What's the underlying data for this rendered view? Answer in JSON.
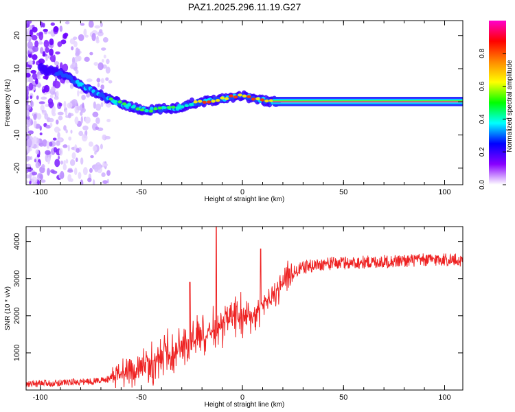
{
  "title": "PAZ1.2025.296.11.19.G27",
  "chart_data": [
    {
      "type": "heatmap",
      "name": "spectrogram",
      "xlabel": "Height of straight line (km)",
      "ylabel": "Frequency (Hz)",
      "xlim": [
        -107,
        109
      ],
      "ylim": [
        -25,
        24.5
      ],
      "xticks": [
        -100,
        -50,
        0,
        50,
        100
      ],
      "yticks": [
        -20,
        -10,
        0,
        10,
        20
      ],
      "ridge": {
        "x": [
          -100,
          -90,
          -85,
          -80,
          -75,
          -70,
          -65,
          -60,
          -55,
          -50,
          -45,
          -40,
          -35,
          -30,
          -25,
          -20,
          -15,
          -10,
          -5,
          0,
          5,
          10,
          15,
          20,
          50,
          100,
          109
        ],
        "frequency": [
          10,
          8.5,
          7,
          5,
          3.5,
          2,
          0.5,
          -0.5,
          -1.5,
          -2.5,
          -2.5,
          -2.2,
          -2,
          -1.5,
          -0.5,
          0,
          0.5,
          1,
          1.5,
          2,
          1,
          0.5,
          0,
          0,
          0,
          0,
          0
        ]
      },
      "colorbar": {
        "label": "Normalized spectral amplitude",
        "ticks": [
          0.0,
          0.2,
          0.4,
          0.6,
          0.8
        ],
        "tick_labels": [
          "0.0",
          "0.2",
          "0.4",
          "0.6",
          "0.8"
        ],
        "range": [
          0,
          1
        ],
        "colors": [
          "#ffffff",
          "#8800ff",
          "#0000ff",
          "#00ffff",
          "#00ff00",
          "#ffff00",
          "#ff8800",
          "#ff0000",
          "#ff00cc"
        ]
      }
    },
    {
      "type": "line",
      "name": "snr",
      "xlabel": "Height of straight line (km)",
      "ylabel": "SNR (10 * v/v)",
      "xlim": [
        -107,
        109
      ],
      "ylim": [
        0,
        4400
      ],
      "xticks": [
        -100,
        -50,
        0,
        50,
        100
      ],
      "yticks": [
        1000,
        2000,
        3000,
        4000
      ],
      "color": "#ee2222",
      "envelope": {
        "x": [
          -107,
          -90,
          -75,
          -65,
          -55,
          -50,
          -45,
          -40,
          -35,
          -30,
          -25,
          -20,
          -15,
          -10,
          -5,
          0,
          5,
          10,
          15,
          20,
          25,
          30,
          40,
          50,
          60,
          70,
          80,
          90,
          100,
          109
        ],
        "y": [
          150,
          200,
          230,
          300,
          550,
          650,
          750,
          900,
          1000,
          1150,
          1300,
          1400,
          1550,
          1750,
          1900,
          1950,
          2050,
          2250,
          2550,
          2900,
          3150,
          3300,
          3400,
          3420,
          3440,
          3460,
          3480,
          3500,
          3520,
          3480
        ]
      },
      "spikes": [
        {
          "x": -26,
          "y": 2900
        },
        {
          "x": -13,
          "y": 4400
        },
        {
          "x": 9,
          "y": 3800
        }
      ]
    }
  ]
}
